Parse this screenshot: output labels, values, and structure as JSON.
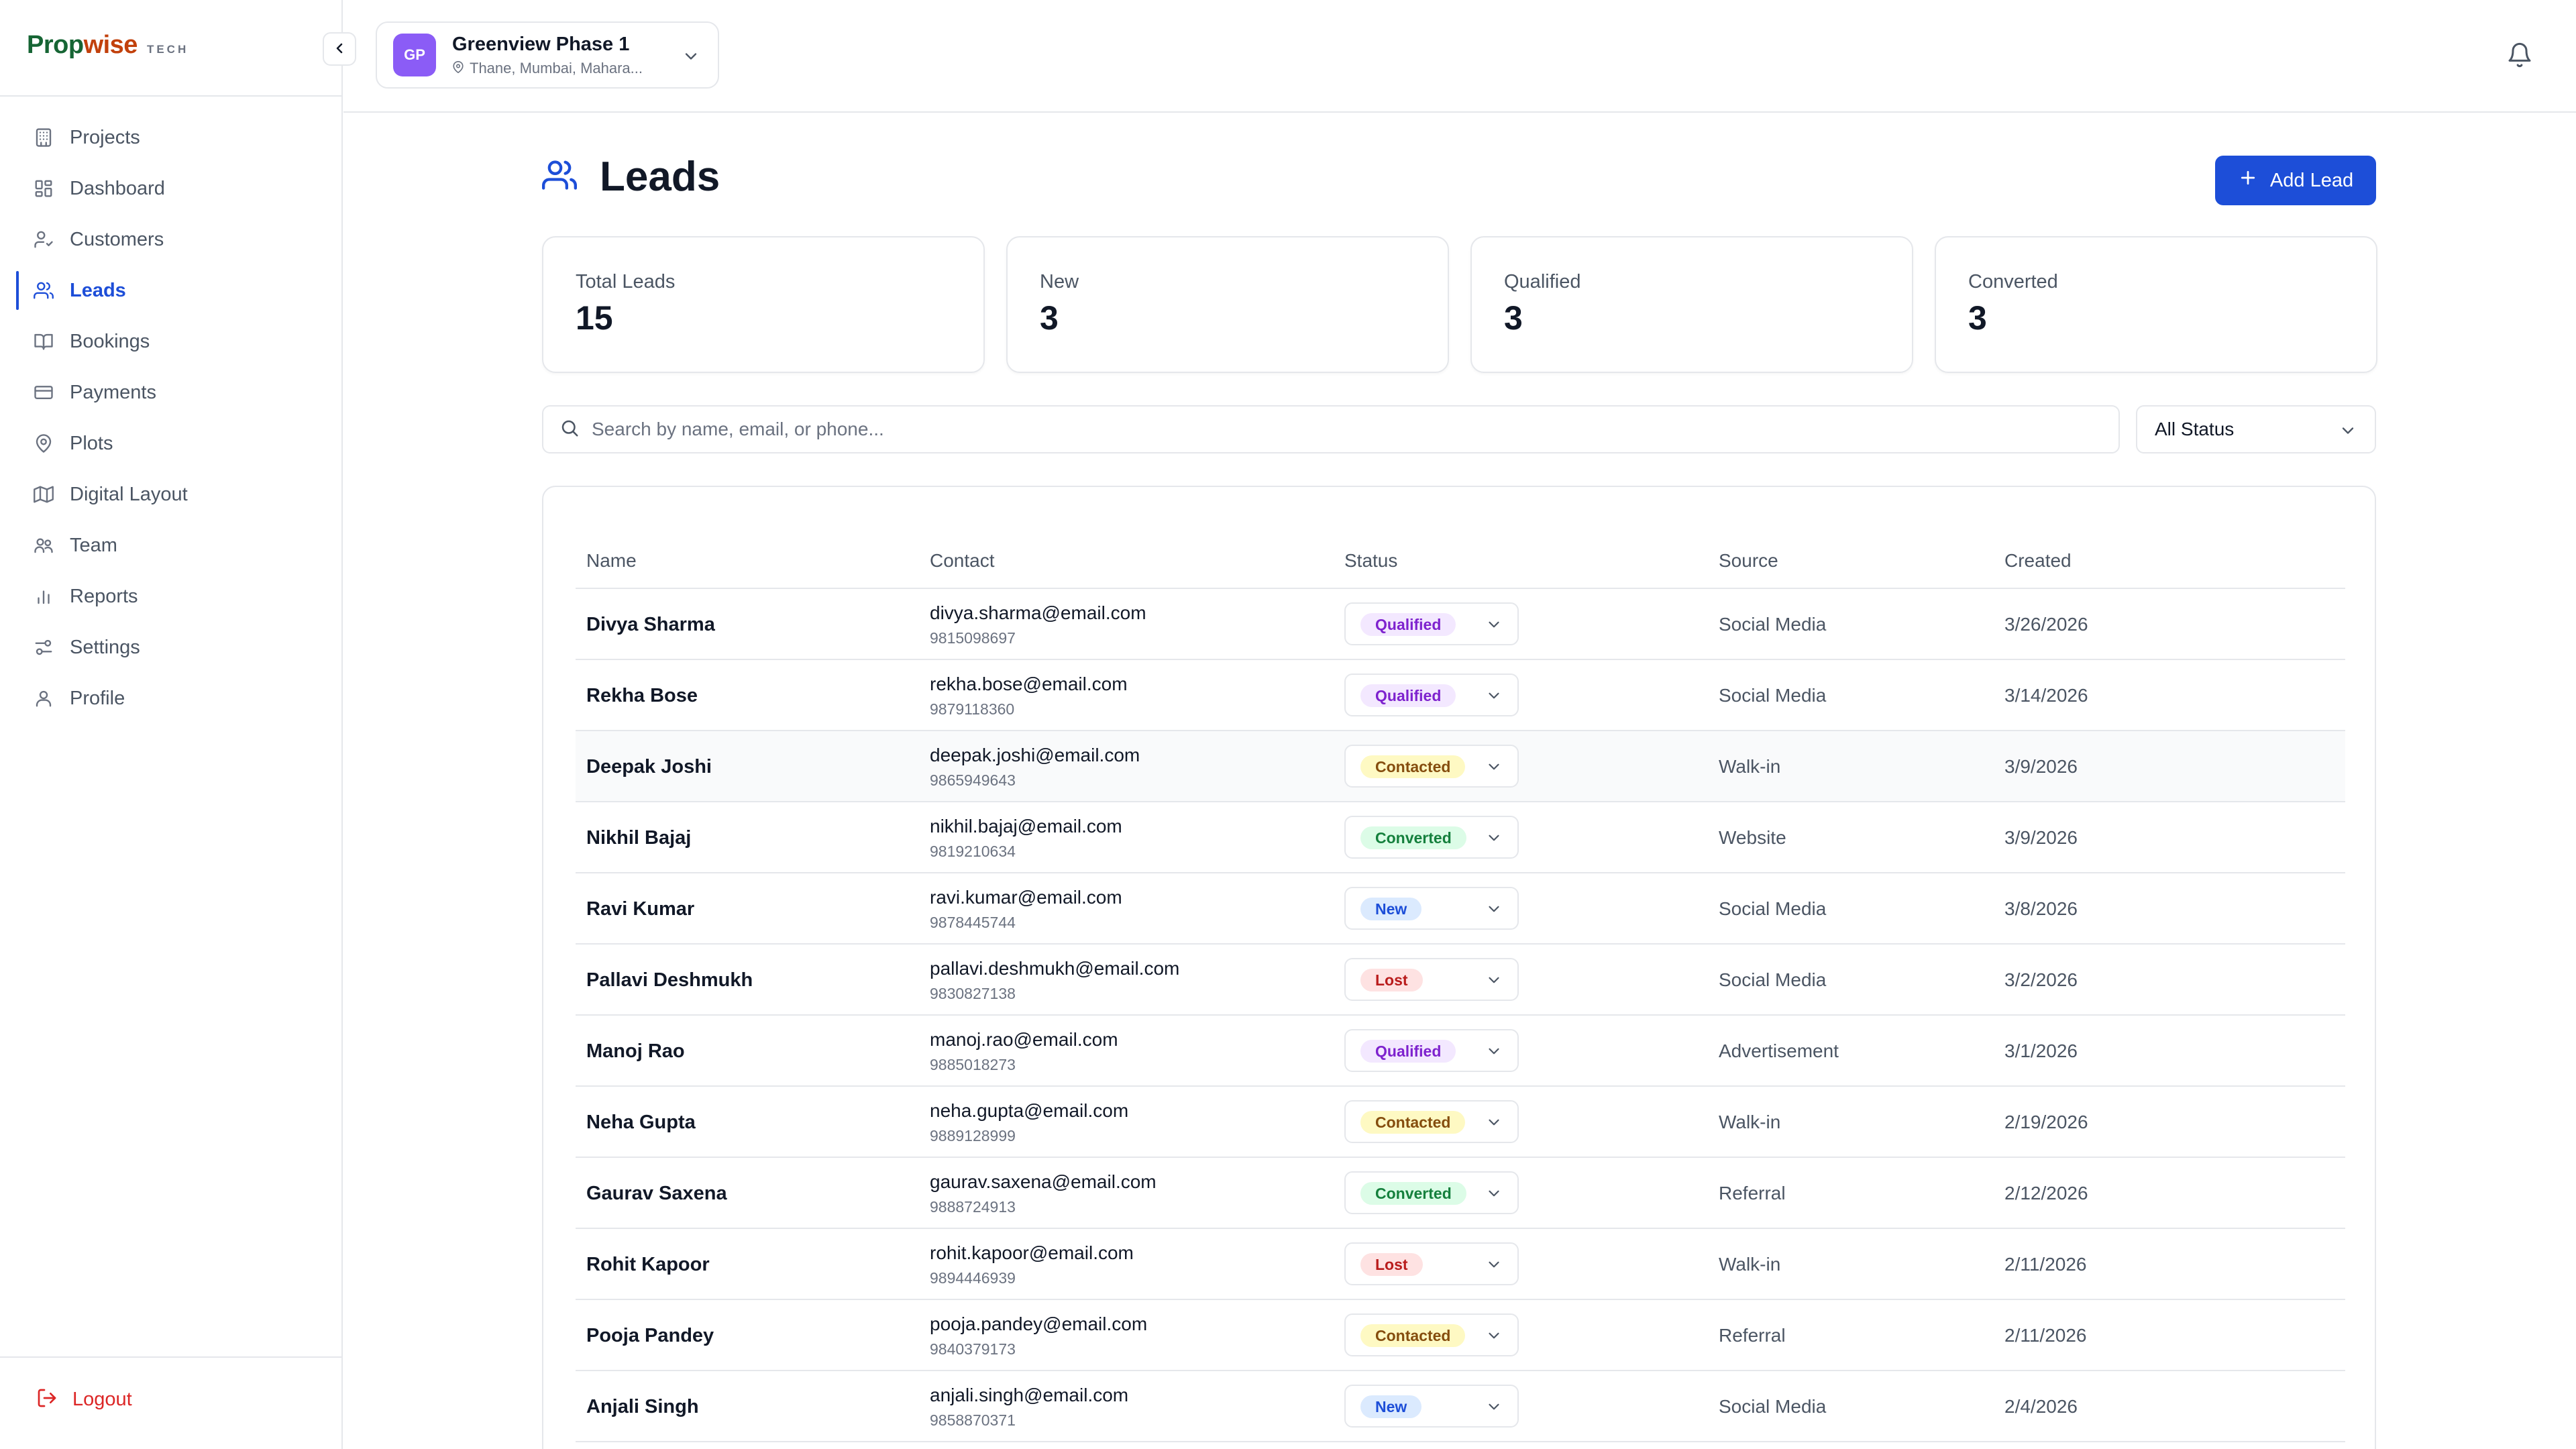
{
  "brand": {
    "name_a": "Prop",
    "name_b": "wise",
    "tag": "TECH"
  },
  "sidebar": {
    "items": [
      {
        "label": "Projects",
        "icon": "building-icon",
        "active": false
      },
      {
        "label": "Dashboard",
        "icon": "dashboard-icon",
        "active": false
      },
      {
        "label": "Customers",
        "icon": "user-check-icon",
        "active": false
      },
      {
        "label": "Leads",
        "icon": "users-icon",
        "active": true
      },
      {
        "label": "Bookings",
        "icon": "book-icon",
        "active": false
      },
      {
        "label": "Payments",
        "icon": "credit-card-icon",
        "active": false
      },
      {
        "label": "Plots",
        "icon": "map-pin-icon",
        "active": false
      },
      {
        "label": "Digital Layout",
        "icon": "map-icon",
        "active": false
      },
      {
        "label": "Team",
        "icon": "team-icon",
        "active": false
      },
      {
        "label": "Reports",
        "icon": "bar-chart-icon",
        "active": false
      },
      {
        "label": "Settings",
        "icon": "sliders-icon",
        "active": false
      },
      {
        "label": "Profile",
        "icon": "user-icon",
        "active": false
      }
    ],
    "logout": "Logout"
  },
  "project": {
    "initials": "GP",
    "name": "Greenview Phase 1",
    "location": "Thane, Mumbai, Mahara..."
  },
  "page": {
    "title": "Leads",
    "add_button": "Add Lead"
  },
  "stats": [
    {
      "label": "Total Leads",
      "value": "15"
    },
    {
      "label": "New",
      "value": "3"
    },
    {
      "label": "Qualified",
      "value": "3"
    },
    {
      "label": "Converted",
      "value": "3"
    }
  ],
  "search": {
    "placeholder": "Search by name, email, or phone..."
  },
  "filter": {
    "selected": "All Status"
  },
  "table": {
    "headers": {
      "name": "Name",
      "contact": "Contact",
      "status": "Status",
      "source": "Source",
      "created": "Created"
    },
    "rows": [
      {
        "name": "Divya Sharma",
        "email": "divya.sharma@email.com",
        "phone": "9815098697",
        "status": "Qualified",
        "source": "Social Media",
        "created": "3/26/2026"
      },
      {
        "name": "Rekha Bose",
        "email": "rekha.bose@email.com",
        "phone": "9879118360",
        "status": "Qualified",
        "source": "Social Media",
        "created": "3/14/2026"
      },
      {
        "name": "Deepak Joshi",
        "email": "deepak.joshi@email.com",
        "phone": "9865949643",
        "status": "Contacted",
        "source": "Walk-in",
        "created": "3/9/2026"
      },
      {
        "name": "Nikhil Bajaj",
        "email": "nikhil.bajaj@email.com",
        "phone": "9819210634",
        "status": "Converted",
        "source": "Website",
        "created": "3/9/2026"
      },
      {
        "name": "Ravi Kumar",
        "email": "ravi.kumar@email.com",
        "phone": "9878445744",
        "status": "New",
        "source": "Social Media",
        "created": "3/8/2026"
      },
      {
        "name": "Pallavi Deshmukh",
        "email": "pallavi.deshmukh@email.com",
        "phone": "9830827138",
        "status": "Lost",
        "source": "Social Media",
        "created": "3/2/2026"
      },
      {
        "name": "Manoj Rao",
        "email": "manoj.rao@email.com",
        "phone": "9885018273",
        "status": "Qualified",
        "source": "Advertisement",
        "created": "3/1/2026"
      },
      {
        "name": "Neha Gupta",
        "email": "neha.gupta@email.com",
        "phone": "9889128999",
        "status": "Contacted",
        "source": "Walk-in",
        "created": "2/19/2026"
      },
      {
        "name": "Gaurav Saxena",
        "email": "gaurav.saxena@email.com",
        "phone": "9888724913",
        "status": "Converted",
        "source": "Referral",
        "created": "2/12/2026"
      },
      {
        "name": "Rohit Kapoor",
        "email": "rohit.kapoor@email.com",
        "phone": "9894446939",
        "status": "Lost",
        "source": "Walk-in",
        "created": "2/11/2026"
      },
      {
        "name": "Pooja Pandey",
        "email": "pooja.pandey@email.com",
        "phone": "9840379173",
        "status": "Contacted",
        "source": "Referral",
        "created": "2/11/2026"
      },
      {
        "name": "Anjali Singh",
        "email": "anjali.singh@email.com",
        "phone": "9858870371",
        "status": "New",
        "source": "Social Media",
        "created": "2/4/2026"
      }
    ]
  },
  "status_colors": {
    "Qualified": {
      "bg": "#f3e8ff",
      "fg": "#7e22ce"
    },
    "Contacted": {
      "bg": "#fef9c3",
      "fg": "#854d0e"
    },
    "Converted": {
      "bg": "#dcfce7",
      "fg": "#15803d"
    },
    "New": {
      "bg": "#dbeafe",
      "fg": "#1d4ed8"
    },
    "Lost": {
      "bg": "#fee2e2",
      "fg": "#b91c1c"
    }
  },
  "accent": "#1d4ed8"
}
